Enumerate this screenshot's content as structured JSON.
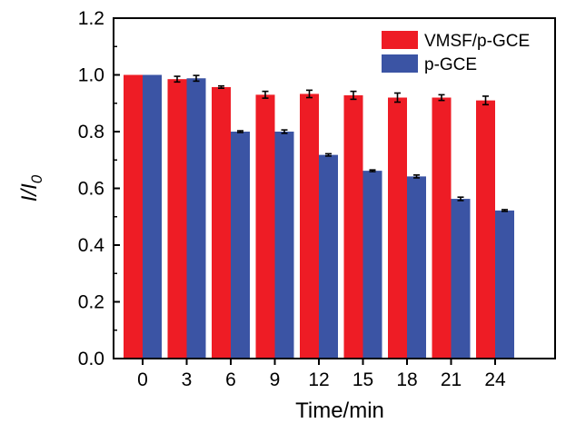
{
  "chart_data": {
    "type": "bar",
    "title": "",
    "xlabel": "Time/min",
    "ylabel_main": "I/I",
    "ylabel_sub": "0",
    "categories": [
      "0",
      "3",
      "6",
      "9",
      "12",
      "15",
      "18",
      "21",
      "24"
    ],
    "series": [
      {
        "name": "VMSF/p-GCE",
        "color": "#ee1c25",
        "values": [
          1.0,
          0.985,
          0.957,
          0.93,
          0.933,
          0.928,
          0.92,
          0.92,
          0.91
        ],
        "errors": [
          0.0,
          0.01,
          0.004,
          0.012,
          0.013,
          0.014,
          0.016,
          0.01,
          0.015
        ]
      },
      {
        "name": "p-GCE",
        "color": "#3b54a4",
        "values": [
          1.0,
          0.988,
          0.8,
          0.8,
          0.718,
          0.662,
          0.642,
          0.563,
          0.522
        ],
        "errors": [
          0.0,
          0.01,
          0.003,
          0.006,
          0.004,
          0.003,
          0.005,
          0.006,
          0.003
        ]
      }
    ],
    "ylim": [
      0.0,
      1.2
    ],
    "yticks": [
      "0.0",
      "0.2",
      "0.4",
      "0.6",
      "0.8",
      "1.0",
      "1.2"
    ],
    "grid": false,
    "legend_position": "top-right"
  }
}
